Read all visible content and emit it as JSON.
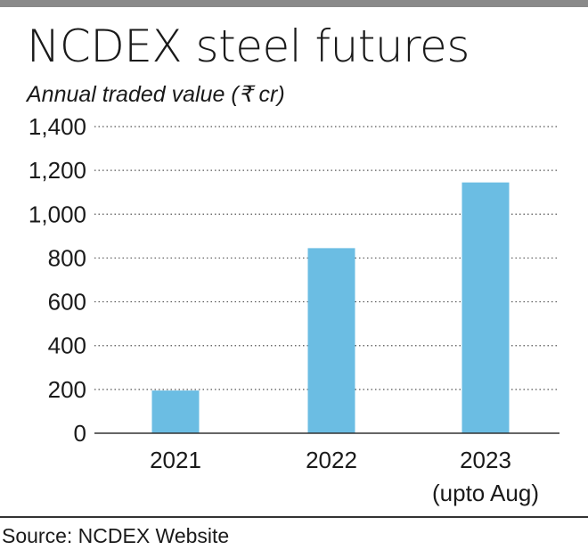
{
  "header": {
    "title": "NCDEX steel futures",
    "subtitle": "Annual traded value (₹ cr)"
  },
  "footer": {
    "source": "Source: NCDEX Website"
  },
  "chart_data": {
    "type": "bar",
    "title": "NCDEX steel futures",
    "subtitle": "Annual traded value (₹ cr)",
    "categories": [
      "2021",
      "2022",
      "2023"
    ],
    "category_sublabels": [
      "",
      "",
      "(upto Aug)"
    ],
    "values": [
      195,
      845,
      1145
    ],
    "ylim": [
      0,
      1400
    ],
    "yticks": [
      0,
      200,
      400,
      600,
      800,
      1000,
      1200,
      1400
    ],
    "ytick_labels": [
      "0",
      "200",
      "400",
      "600",
      "800",
      "1,000",
      "1,200",
      "1,400"
    ],
    "grid": true,
    "grid_style": "dotted",
    "bar_color": "#6bbde3",
    "axis_color": "#333333"
  }
}
